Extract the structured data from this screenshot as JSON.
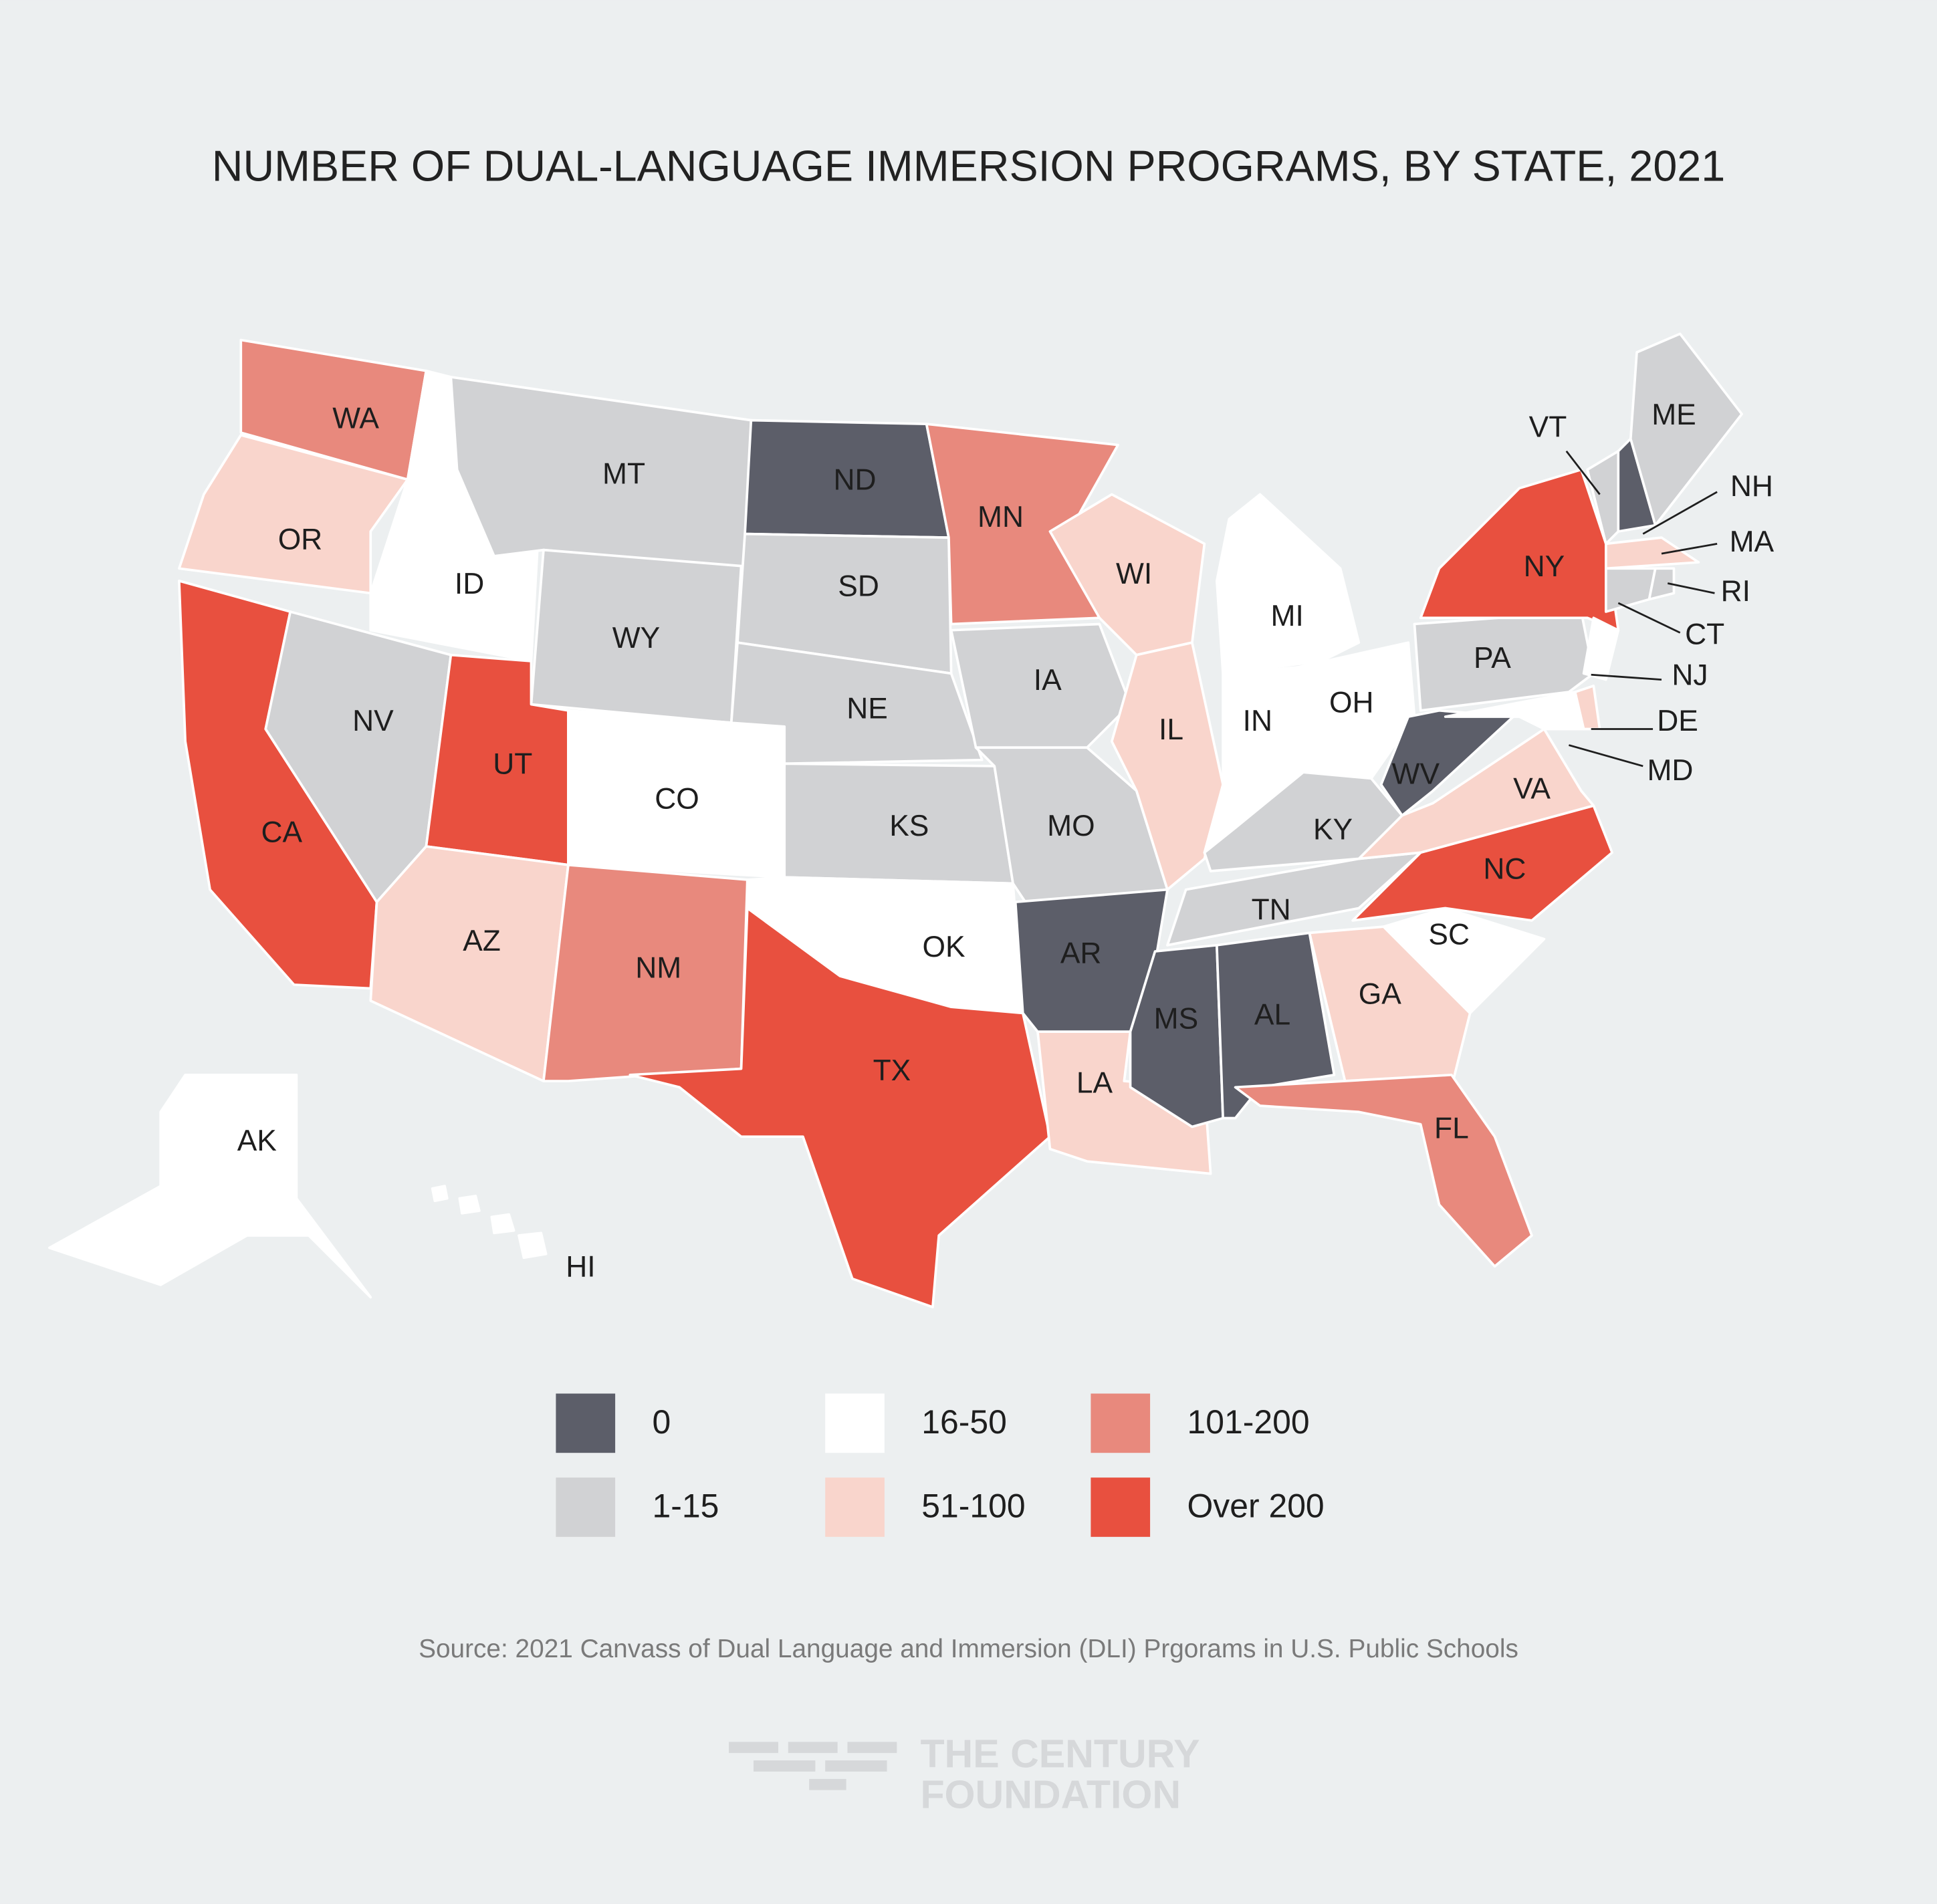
{
  "title": "NUMBER OF DUAL-LANGUAGE IMMERSION PROGRAMS, BY STATE, 2021",
  "legend": [
    {
      "label": "0",
      "color": "#5c5e69"
    },
    {
      "label": "1-15",
      "color": "#d1d2d4"
    },
    {
      "label": "16-50",
      "color": "#ffffff"
    },
    {
      "label": "51-100",
      "color": "#f9d5cc"
    },
    {
      "label": "101-200",
      "color": "#e8897d"
    },
    {
      "label": "Over 200",
      "color": "#e8503f"
    }
  ],
  "states": [
    {
      "label": "WA",
      "group": "101-200"
    },
    {
      "label": "OR",
      "group": "51-100"
    },
    {
      "label": "CA",
      "group": "Over 200"
    },
    {
      "label": "ID",
      "group": "16-50"
    },
    {
      "label": "NV",
      "group": "1-15"
    },
    {
      "label": "MT",
      "group": "1-15"
    },
    {
      "label": "WY",
      "group": "1-15"
    },
    {
      "label": "UT",
      "group": "Over 200"
    },
    {
      "label": "AZ",
      "group": "51-100"
    },
    {
      "label": "CO",
      "group": "16-50"
    },
    {
      "label": "NM",
      "group": "101-200"
    },
    {
      "label": "ND",
      "group": "0"
    },
    {
      "label": "SD",
      "group": "1-15"
    },
    {
      "label": "NE",
      "group": "1-15"
    },
    {
      "label": "KS",
      "group": "1-15"
    },
    {
      "label": "OK",
      "group": "16-50"
    },
    {
      "label": "TX",
      "group": "Over 200"
    },
    {
      "label": "MN",
      "group": "101-200"
    },
    {
      "label": "IA",
      "group": "1-15"
    },
    {
      "label": "MO",
      "group": "1-15"
    },
    {
      "label": "AR",
      "group": "0"
    },
    {
      "label": "LA",
      "group": "51-100"
    },
    {
      "label": "WI",
      "group": "51-100"
    },
    {
      "label": "IL",
      "group": "51-100"
    },
    {
      "label": "MI",
      "group": "16-50"
    },
    {
      "label": "IN",
      "group": "16-50"
    },
    {
      "label": "OH",
      "group": "16-50"
    },
    {
      "label": "KY",
      "group": "1-15"
    },
    {
      "label": "TN",
      "group": "1-15"
    },
    {
      "label": "MS",
      "group": "0"
    },
    {
      "label": "AL",
      "group": "0"
    },
    {
      "label": "GA",
      "group": "51-100"
    },
    {
      "label": "FL",
      "group": "101-200"
    },
    {
      "label": "SC",
      "group": "16-50"
    },
    {
      "label": "NC",
      "group": "Over 200"
    },
    {
      "label": "VA",
      "group": "51-100"
    },
    {
      "label": "WV",
      "group": "0"
    },
    {
      "label": "PA",
      "group": "1-15"
    },
    {
      "label": "NY",
      "group": "Over 200"
    },
    {
      "label": "VT",
      "group": "1-15"
    },
    {
      "label": "NH",
      "group": "0"
    },
    {
      "label": "ME",
      "group": "1-15"
    },
    {
      "label": "MA",
      "group": "51-100"
    },
    {
      "label": "CT",
      "group": "1-15"
    },
    {
      "label": "RI",
      "group": "1-15"
    },
    {
      "label": "NJ",
      "group": "16-50"
    },
    {
      "label": "DE",
      "group": "51-100"
    },
    {
      "label": "MD",
      "group": "16-50"
    },
    {
      "label": "AK",
      "group": "16-50"
    },
    {
      "label": "HI",
      "group": "16-50"
    }
  ],
  "source": "Source:  2021 Canvass of Dual Language and Immersion (DLI) Prgorams in U.S. Public Schools",
  "logo": [
    "THE CENTURY",
    "FOUNDATION"
  ]
}
